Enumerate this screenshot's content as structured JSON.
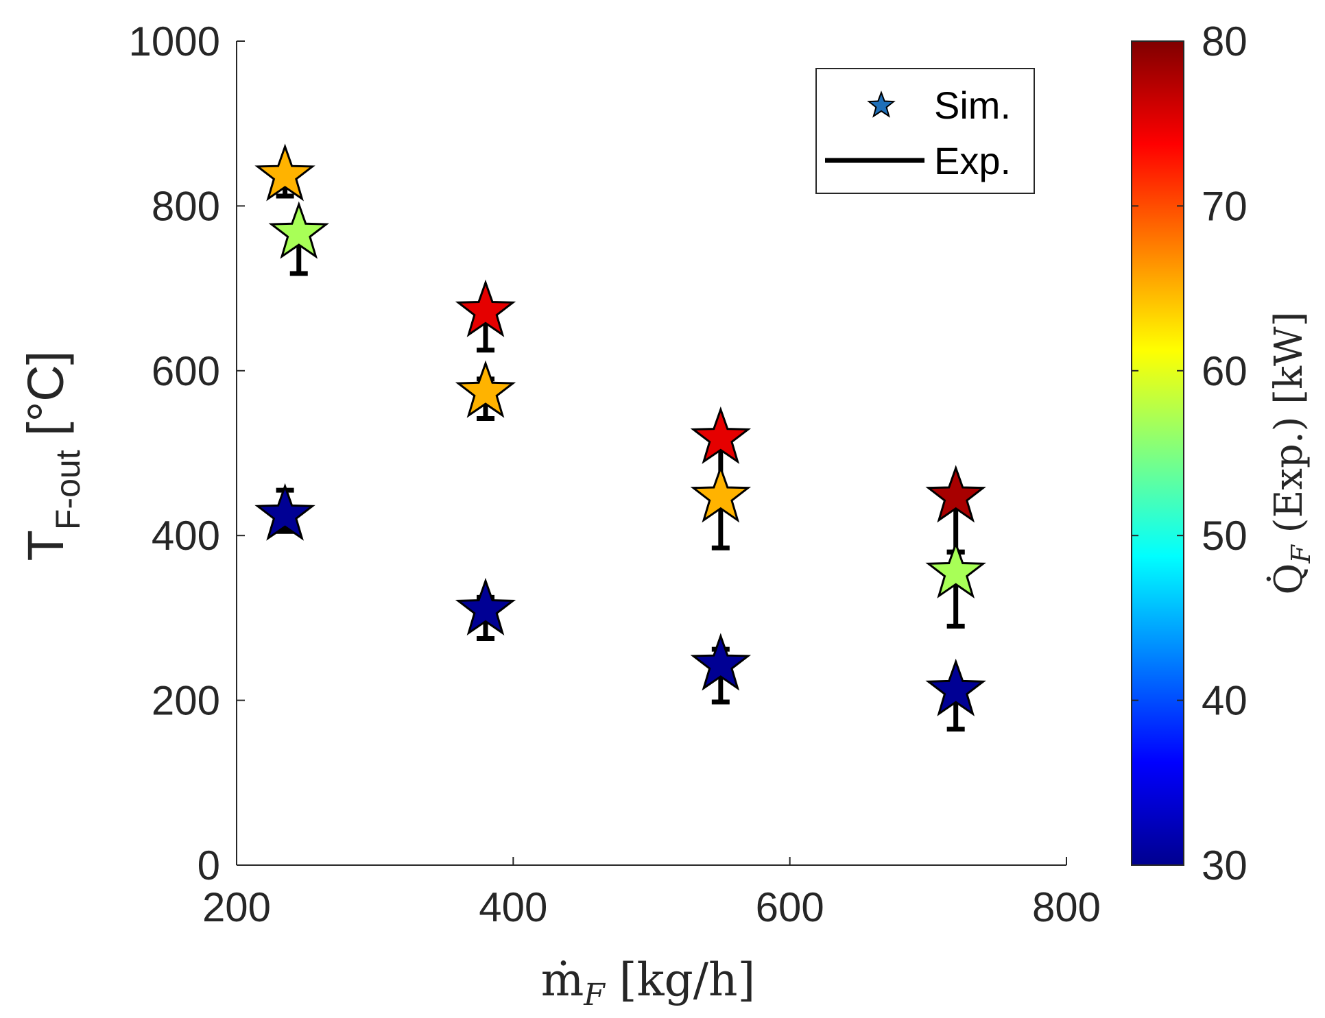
{
  "chart_data": {
    "type": "scatter",
    "xlabel": {
      "main": "ṁ",
      "sub": "F",
      "unit": " [kg/h]"
    },
    "ylabel": {
      "main": "T",
      "sub": "F-out",
      "unit": " [°C]"
    },
    "xlim": [
      200,
      800
    ],
    "ylim": [
      0,
      1000
    ],
    "xticks": [
      200,
      400,
      600,
      800
    ],
    "yticks": [
      0,
      200,
      400,
      600,
      800,
      1000
    ],
    "grid": false,
    "legend": {
      "position": "top-right",
      "entries": [
        {
          "label": "Sim.",
          "marker": "star"
        },
        {
          "label": "Exp.",
          "marker": "line"
        }
      ]
    },
    "colorbar": {
      "label": {
        "main": "Q̇",
        "sub": "F",
        "unit": " (Exp.) [kW]"
      },
      "range": [
        30,
        80
      ],
      "ticks": [
        30,
        40,
        50,
        60,
        70,
        80
      ],
      "colormap": "jet"
    },
    "series": [
      {
        "name": "Sim.",
        "marker": "star",
        "points": [
          {
            "x": 235,
            "y": 837,
            "q": 65
          },
          {
            "x": 245,
            "y": 767,
            "q": 57
          },
          {
            "x": 380,
            "y": 672,
            "q": 75
          },
          {
            "x": 380,
            "y": 574,
            "q": 65
          },
          {
            "x": 235,
            "y": 425,
            "q": 31
          },
          {
            "x": 380,
            "y": 310,
            "q": 31
          },
          {
            "x": 550,
            "y": 518,
            "q": 75
          },
          {
            "x": 550,
            "y": 447,
            "q": 65
          },
          {
            "x": 550,
            "y": 243,
            "q": 31
          },
          {
            "x": 720,
            "y": 447,
            "q": 78
          },
          {
            "x": 720,
            "y": 355,
            "q": 57
          },
          {
            "x": 720,
            "y": 212,
            "q": 31
          }
        ]
      },
      {
        "name": "Exp.",
        "marker": "errorbar",
        "points": [
          {
            "x": 235,
            "y": 825,
            "lower": 812,
            "upper": 838
          },
          {
            "x": 245,
            "y": 745,
            "lower": 718,
            "upper": 772
          },
          {
            "x": 380,
            "y": 650,
            "lower": 625,
            "upper": 675
          },
          {
            "x": 380,
            "y": 565,
            "lower": 542,
            "upper": 590
          },
          {
            "x": 235,
            "y": 430,
            "lower": 405,
            "upper": 455
          },
          {
            "x": 380,
            "y": 300,
            "lower": 275,
            "upper": 325
          },
          {
            "x": 550,
            "y": 450,
            "lower": 385,
            "upper": 515
          },
          {
            "x": 550,
            "y": 230,
            "lower": 198,
            "upper": 262
          },
          {
            "x": 720,
            "y": 415,
            "lower": 380,
            "upper": 450
          },
          {
            "x": 720,
            "y": 335,
            "lower": 290,
            "upper": 380
          },
          {
            "x": 720,
            "y": 190,
            "lower": 165,
            "upper": 215
          }
        ]
      }
    ]
  }
}
